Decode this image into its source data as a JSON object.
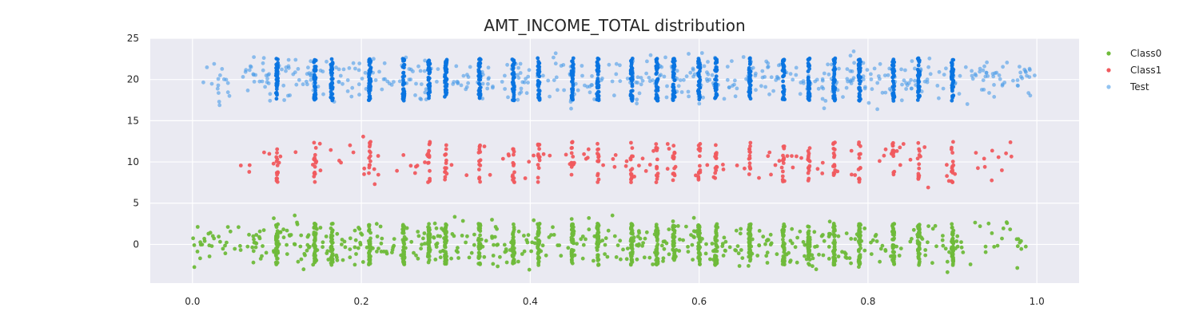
{
  "chart_data": {
    "type": "scatter",
    "title": "AMT_INCOME_TOTAL distribution",
    "xlabel": "",
    "ylabel": "",
    "xlim": [
      -0.05,
      1.05
    ],
    "ylim": [
      -4.7,
      25
    ],
    "xticks": [
      0.0,
      0.2,
      0.4,
      0.6,
      0.8,
      1.0
    ],
    "xtick_labels": [
      "0.0",
      "0.2",
      "0.4",
      "0.6",
      "0.8",
      "1.0"
    ],
    "yticks": [
      0,
      5,
      10,
      15,
      20,
      25
    ],
    "ytick_labels": [
      "0",
      "5",
      "10",
      "15",
      "20",
      "25"
    ],
    "grid": true,
    "legend_position": "upper-right-outside",
    "series": [
      {
        "name": "Class0",
        "color": "#6fbb3a",
        "center": 0,
        "spread": 3.5,
        "x_min": 0.0,
        "x_max": 0.99,
        "columns": [
          0.1,
          0.145,
          0.165,
          0.21,
          0.25,
          0.28,
          0.3,
          0.34,
          0.38,
          0.41,
          0.45,
          0.48,
          0.52,
          0.55,
          0.57,
          0.6,
          0.62,
          0.66,
          0.7,
          0.73,
          0.76,
          0.79,
          0.83,
          0.86,
          0.9
        ]
      },
      {
        "name": "Class1",
        "color": "#f05a5e",
        "center": 10,
        "spread": 3.3,
        "x_min": 0.055,
        "x_max": 0.97,
        "columns": [
          0.1,
          0.145,
          0.21,
          0.28,
          0.3,
          0.34,
          0.38,
          0.41,
          0.45,
          0.48,
          0.52,
          0.55,
          0.57,
          0.6,
          0.62,
          0.66,
          0.7,
          0.73,
          0.76,
          0.79,
          0.83,
          0.86,
          0.9
        ]
      },
      {
        "name": "Test",
        "color": "#4a9be8",
        "center": 20,
        "spread": 3.6,
        "x_min": 0.01,
        "x_max": 1.0,
        "columns": [
          0.1,
          0.145,
          0.165,
          0.21,
          0.25,
          0.28,
          0.3,
          0.34,
          0.38,
          0.41,
          0.45,
          0.48,
          0.52,
          0.55,
          0.57,
          0.6,
          0.62,
          0.66,
          0.7,
          0.73,
          0.76,
          0.79,
          0.83,
          0.86,
          0.9
        ],
        "dense_color": "#0a74e0"
      }
    ]
  }
}
